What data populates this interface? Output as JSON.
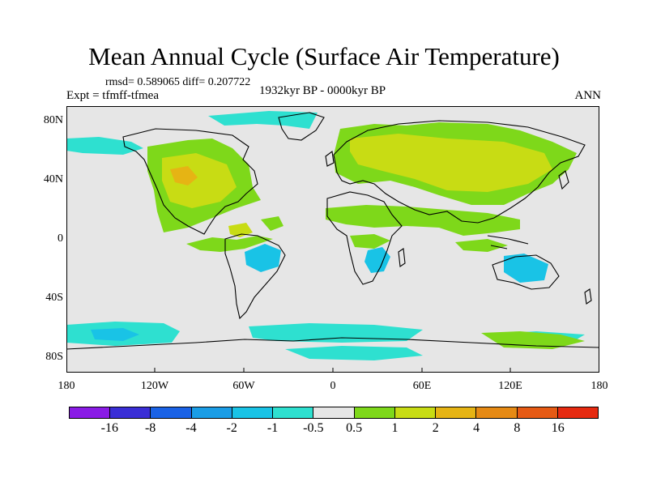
{
  "title": "Mean Annual Cycle (Surface Air Temperature)",
  "stats": "rmsd= 0.589065 diff= 0.207722",
  "experiment": "Expt = tfmff-tfmea",
  "period": "1932kyr BP - 0000kyr BP",
  "season": "ANN",
  "lat_labels": [
    "80N",
    "40N",
    "0",
    "40S",
    "80S"
  ],
  "lon_labels": [
    "180",
    "120W",
    "60W",
    "0",
    "60E",
    "120E",
    "180"
  ],
  "colorbar": {
    "labels": [
      "-16",
      "-8",
      "-4",
      "-2",
      "-1",
      "-0.5",
      "0.5",
      "1",
      "2",
      "4",
      "8",
      "16"
    ],
    "colors": [
      "#8a1be6",
      "#3a2ed6",
      "#1a62e6",
      "#1a9de6",
      "#19c3e6",
      "#2ee0d0",
      "#e6e6e6",
      "#7ed81a",
      "#c8dc14",
      "#e6b414",
      "#e68a14",
      "#e65a14",
      "#e62a10"
    ]
  },
  "palette": {
    "background": "#e6e6e6",
    "land_outline": "#000000",
    "cyan_anomaly": "#2ee0d0",
    "light_blue_anomaly": "#19c3e6",
    "green_anomaly": "#7ed81a",
    "yellow_anomaly": "#c8dc14"
  }
}
